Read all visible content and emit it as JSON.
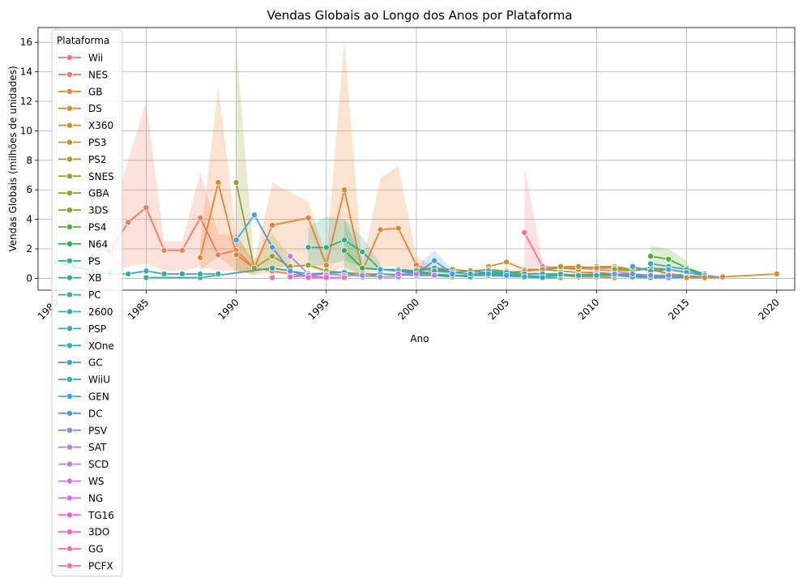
{
  "chart_data": {
    "type": "line",
    "title": "Vendas Globais ao Longo dos Anos por Plataforma",
    "xlabel": "Ano",
    "ylabel": "Vendas Globais (milhões de unidades)",
    "xlim": [
      1979,
      2021
    ],
    "ylim": [
      -0.8,
      17
    ],
    "x_ticks": [
      1980,
      1985,
      1990,
      1995,
      2000,
      2005,
      2010,
      2015,
      2020
    ],
    "y_ticks": [
      0,
      2,
      4,
      6,
      8,
      10,
      12,
      14,
      16
    ],
    "grid": true,
    "legend": {
      "title": "Plataforma",
      "placement": "upper-left"
    },
    "series": [
      {
        "name": "Wii",
        "color": "#f77189",
        "x": [
          2006,
          2007,
          2008,
          2009,
          2010,
          2011,
          2012,
          2013,
          2014,
          2015,
          2016
        ],
        "y": [
          3.1,
          0.8,
          0.7,
          0.7,
          0.6,
          0.5,
          0.3,
          0.2,
          0.1,
          0.05,
          0.05
        ],
        "band": [
          [
            2006,
            0,
            7.6
          ],
          [
            2007,
            0.5,
            1.1
          ]
        ]
      },
      {
        "name": "NES",
        "color": "#f27a5a",
        "x": [
          1983,
          1984,
          1985,
          1986,
          1987,
          1988,
          1989,
          1990,
          1991,
          1992,
          1993,
          1994
        ],
        "y": [
          1.8,
          3.8,
          4.8,
          1.9,
          1.9,
          4.1,
          1.6,
          1.9,
          0.7,
          0.5,
          0.3,
          0.1
        ],
        "band": [
          [
            1983,
            0.5,
            3.5
          ],
          [
            1984,
            0.8,
            8.0
          ],
          [
            1985,
            1.0,
            12.0
          ],
          [
            1986,
            0.5,
            2.5
          ],
          [
            1987,
            0.5,
            2.5
          ],
          [
            1988,
            0.8,
            7.2
          ],
          [
            1989,
            0.5,
            3.0
          ],
          [
            1990,
            0.5,
            3.0
          ],
          [
            1991,
            0.3,
            1.1
          ]
        ]
      },
      {
        "name": "GB",
        "color": "#e8822f",
        "x": [
          1988,
          1989,
          1990,
          1991,
          1992,
          1994,
          1995,
          1996,
          1997,
          1998,
          1999,
          2000,
          2001
        ],
        "y": [
          1.4,
          6.5,
          1.6,
          0.7,
          3.6,
          4.1,
          0.9,
          6.0,
          0.5,
          3.3,
          3.4,
          0.9,
          0.4
        ],
        "band": [
          [
            1988,
            0.5,
            2.5
          ],
          [
            1989,
            1.5,
            13.0
          ],
          [
            1990,
            0.5,
            3.0
          ],
          [
            1991,
            0.3,
            1.1
          ],
          [
            1992,
            0.8,
            6.5
          ],
          [
            1994,
            0.8,
            5.2
          ],
          [
            1995,
            0.3,
            1.5
          ],
          [
            1996,
            0.8,
            16.2
          ],
          [
            1997,
            0.2,
            0.9
          ],
          [
            1998,
            0.8,
            6.8
          ],
          [
            1999,
            0.8,
            7.6
          ],
          [
            2000,
            0.3,
            1.5
          ],
          [
            2001,
            0.1,
            0.7
          ]
        ]
      },
      {
        "name": "DS",
        "color": "#d98a2a",
        "x": [
          2004,
          2005,
          2006,
          2007,
          2008,
          2009,
          2010,
          2011,
          2012,
          2013,
          2014
        ],
        "y": [
          0.8,
          1.1,
          0.6,
          0.6,
          0.5,
          0.4,
          0.4,
          0.3,
          0.2,
          0.1,
          0.05
        ]
      },
      {
        "name": "X360",
        "color": "#c98f2e",
        "x": [
          2005,
          2006,
          2007,
          2008,
          2009,
          2010,
          2011,
          2012,
          2013,
          2014,
          2015,
          2016
        ],
        "y": [
          0.4,
          0.5,
          0.6,
          0.7,
          0.6,
          0.8,
          0.8,
          0.6,
          0.6,
          0.3,
          0.2,
          0.05
        ]
      },
      {
        "name": "PS3",
        "color": "#b89630",
        "x": [
          2006,
          2007,
          2008,
          2009,
          2010,
          2011,
          2012,
          2013,
          2014,
          2015,
          2016
        ],
        "y": [
          0.5,
          0.6,
          0.8,
          0.8,
          0.7,
          0.7,
          0.6,
          0.7,
          0.3,
          0.2,
          0.05
        ]
      },
      {
        "name": "PS2",
        "color": "#a89a31",
        "x": [
          2000,
          2001,
          2002,
          2003,
          2004,
          2005,
          2006,
          2007,
          2008,
          2009,
          2010,
          2011
        ],
        "y": [
          0.6,
          0.7,
          0.6,
          0.5,
          0.6,
          0.5,
          0.3,
          0.3,
          0.2,
          0.1,
          0.1,
          0.05
        ]
      },
      {
        "name": "SNES",
        "color": "#999f31",
        "x": [
          1990,
          1991,
          1992,
          1993,
          1994,
          1995,
          1996,
          1997,
          1998,
          1999
        ],
        "y": [
          6.5,
          0.7,
          1.5,
          0.8,
          0.9,
          0.5,
          0.4,
          0.3,
          0.3,
          0.2
        ],
        "band": [
          [
            1990,
            0.5,
            15.8
          ],
          [
            1991,
            0.2,
            1.2
          ],
          [
            1992,
            0.4,
            3.0
          ],
          [
            1993,
            0.3,
            1.5
          ]
        ]
      },
      {
        "name": "GBA",
        "color": "#8aa331",
        "x": [
          2001,
          2002,
          2003,
          2004,
          2005,
          2006,
          2007
        ],
        "y": [
          0.6,
          0.4,
          0.5,
          0.4,
          0.3,
          0.2,
          0.1
        ]
      },
      {
        "name": "3DS",
        "color": "#78a831",
        "x": [
          2011,
          2012,
          2013,
          2014,
          2015,
          2016,
          2017
        ],
        "y": [
          0.6,
          0.5,
          0.7,
          0.6,
          0.4,
          0.2,
          0.05
        ]
      },
      {
        "name": "PS4",
        "color": "#5aad31",
        "x": [
          2013,
          2014,
          2015,
          2016
        ],
        "y": [
          1.5,
          1.3,
          0.7,
          0.3
        ],
        "band": [
          [
            2013,
            0.5,
            2.2
          ],
          [
            2014,
            0.6,
            2.0
          ],
          [
            2015,
            0.3,
            1.2
          ]
        ]
      },
      {
        "name": "N64",
        "color": "#33b04f",
        "x": [
          1996,
          1997,
          1998,
          1999,
          2000,
          2001,
          2002
        ],
        "y": [
          1.9,
          0.7,
          0.6,
          0.5,
          0.4,
          0.2,
          0.1
        ],
        "band": [
          [
            1996,
            0.6,
            4.0
          ],
          [
            1997,
            0.3,
            1.3
          ]
        ]
      },
      {
        "name": "PS",
        "color": "#34ae82",
        "x": [
          1994,
          1995,
          1996,
          1997,
          1998,
          1999,
          2000,
          2001,
          2002,
          2003
        ],
        "y": [
          2.1,
          2.1,
          2.6,
          1.8,
          0.6,
          0.6,
          0.5,
          0.3,
          0.2,
          0.1
        ],
        "band": [
          [
            1994,
            0.8,
            3.5
          ],
          [
            1995,
            0.9,
            4.2
          ],
          [
            1996,
            1.2,
            4.0
          ],
          [
            1997,
            0.8,
            2.8
          ],
          [
            1998,
            0.3,
            1.0
          ]
        ]
      },
      {
        "name": "XB",
        "color": "#35ad93",
        "x": [
          2000,
          2001,
          2002,
          2003,
          2004,
          2005,
          2006,
          2007,
          2008
        ],
        "y": [
          0.5,
          0.7,
          0.4,
          0.3,
          0.4,
          0.3,
          0.1,
          0.05,
          0.05
        ]
      },
      {
        "name": "PC",
        "color": "#36ab9f",
        "x": [
          1985,
          1988,
          1992,
          1994,
          1996,
          1997,
          1998,
          2000,
          2004,
          2006,
          2008,
          2010,
          2012,
          2014,
          2016
        ],
        "y": [
          0.05,
          0.05,
          0.7,
          0.3,
          0.4,
          0.1,
          0.3,
          0.2,
          0.2,
          0.1,
          0.2,
          0.3,
          0.2,
          0.2,
          0.1
        ]
      },
      {
        "name": "2600",
        "color": "#37aaab",
        "x": [
          1980,
          1981,
          1982,
          1983,
          1984,
          1985,
          1986,
          1987,
          1988,
          1989
        ],
        "y": [
          1.1,
          0.8,
          0.5,
          0.3,
          0.3,
          0.5,
          0.3,
          0.3,
          0.3,
          0.3
        ],
        "band": [
          [
            1980,
            0.3,
            1.8
          ],
          [
            1981,
            0.3,
            1.2
          ],
          [
            1982,
            0.2,
            0.8
          ]
        ]
      },
      {
        "name": "PSP",
        "color": "#38a9b6",
        "x": [
          2004,
          2005,
          2006,
          2007,
          2008,
          2009,
          2010,
          2011,
          2012,
          2013,
          2014,
          2015
        ],
        "y": [
          0.5,
          0.4,
          0.3,
          0.3,
          0.3,
          0.2,
          0.2,
          0.2,
          0.1,
          0.05,
          0.05,
          0.05
        ]
      },
      {
        "name": "XOne",
        "color": "#39a7c2",
        "x": [
          2013,
          2014,
          2015,
          2016
        ],
        "y": [
          1.0,
          0.8,
          0.6,
          0.2
        ]
      },
      {
        "name": "GC",
        "color": "#3ba5cf",
        "x": [
          2001,
          2002,
          2003,
          2004,
          2005,
          2006,
          2007
        ],
        "y": [
          0.5,
          0.4,
          0.3,
          0.3,
          0.2,
          0.1,
          0.05
        ]
      },
      {
        "name": "WiiU",
        "color": "#3ea2dc",
        "x": [
          2012,
          2013,
          2014,
          2015,
          2016,
          2017
        ],
        "y": [
          0.8,
          0.5,
          0.6,
          0.4,
          0.2,
          0.05
        ]
      },
      {
        "name": "GEN",
        "color": "#429eea",
        "x": [
          1990,
          1991,
          1992,
          1993,
          1994
        ],
        "y": [
          2.6,
          4.3,
          2.1,
          0.5,
          0.1
        ]
      },
      {
        "name": "DC",
        "color": "#5096e8",
        "x": [
          1998,
          1999,
          2000,
          2001,
          2002
        ],
        "y": [
          0.6,
          0.5,
          0.3,
          1.2,
          0.3
        ],
        "band": [
          [
            2000,
            0.1,
            0.8
          ],
          [
            2001,
            0.5,
            1.9
          ],
          [
            2002,
            0.1,
            0.6
          ]
        ]
      },
      {
        "name": "PSV",
        "color": "#7e8eee",
        "x": [
          2011,
          2012,
          2013,
          2014,
          2015,
          2016,
          2017
        ],
        "y": [
          0.3,
          0.3,
          0.2,
          0.2,
          0.1,
          0.05,
          0.05
        ]
      },
      {
        "name": "SAT",
        "color": "#9f87ef",
        "x": [
          1994,
          1995,
          1996,
          1997,
          1998,
          1999
        ],
        "y": [
          0.2,
          0.3,
          0.2,
          0.2,
          0.1,
          0.1
        ]
      },
      {
        "name": "SCD",
        "color": "#b580ef",
        "x": [
          1993,
          1994
        ],
        "y": [
          1.5,
          0.3
        ]
      },
      {
        "name": "WS",
        "color": "#cb74ef",
        "x": [
          1999,
          2000,
          2001
        ],
        "y": [
          0.3,
          0.3,
          0.2
        ]
      },
      {
        "name": "NG",
        "color": "#dd6be8",
        "x": [
          1993,
          1994,
          1995,
          1996
        ],
        "y": [
          0.1,
          0.2,
          0.05,
          0.05
        ]
      },
      {
        "name": "TG16",
        "color": "#ec62dd",
        "x": [
          1995
        ],
        "y": [
          0.2
        ]
      },
      {
        "name": "3DO",
        "color": "#f264cd",
        "x": [
          1994,
          1995
        ],
        "y": [
          0.05,
          0.05
        ]
      },
      {
        "name": "GG",
        "color": "#f56abd",
        "x": [
          1992
        ],
        "y": [
          0.05
        ]
      },
      {
        "name": "PCFX",
        "color": "#f76eae",
        "x": [
          1996
        ],
        "y": [
          0.05
        ]
      }
    ],
    "extra_series_points": {
      "DS_2020": {
        "series": "DS",
        "x": [
          2015,
          2016,
          2017,
          2020
        ],
        "y": [
          0.05,
          0.05,
          0.1,
          0.3
        ]
      }
    }
  }
}
